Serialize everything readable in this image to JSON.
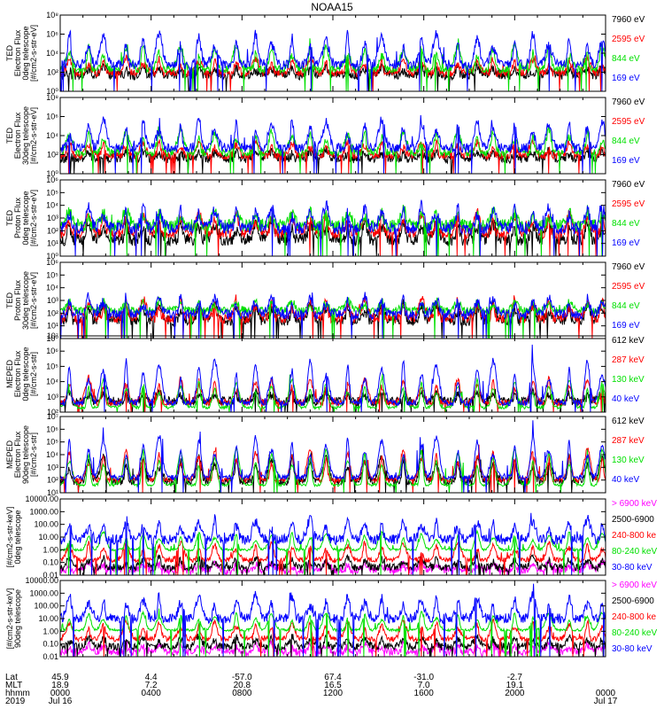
{
  "figure": {
    "title": "NOAA15"
  },
  "colors": {
    "blue": "#0000ff",
    "red": "#ff0000",
    "green": "#00e000",
    "black": "#000000",
    "magenta": "#ff00ff"
  },
  "chart_data": [
    {
      "type": "line",
      "panel": 1,
      "scale": "log",
      "ylim_exp": [
        0,
        8
      ],
      "ytick_labels": [
        "10⁰",
        "10²",
        "10⁴",
        "10⁶",
        "10⁸"
      ],
      "ylabel_lines": [
        "TED",
        "Electron Flux",
        "0deg telescope",
        "[#/cm2-s-str-eV]"
      ],
      "xlim_hours": [
        0,
        24
      ],
      "series": [
        {
          "name": "7960 eV",
          "color": "#000000",
          "base": 1.7,
          "noise": 0.5,
          "spike": 0.8
        },
        {
          "name": "2595 eV",
          "color": "#ff0000",
          "base": 1.9,
          "noise": 0.4,
          "spike": 1.6
        },
        {
          "name": "844 eV",
          "color": "#00e000",
          "base": 2.3,
          "noise": 0.4,
          "spike": 2.6
        },
        {
          "name": "169 eV",
          "color": "#0000ff",
          "base": 2.8,
          "noise": 0.5,
          "spike": 3.2
        }
      ]
    },
    {
      "type": "line",
      "panel": 2,
      "scale": "log",
      "ylim_exp": [
        0,
        8
      ],
      "ytick_labels": [
        "10⁰",
        "10²",
        "10⁴",
        "10⁶",
        "10⁸"
      ],
      "ylabel_lines": [
        "TED",
        "Electron Flux",
        "30deg telescope",
        "[#/cm2-s-str-eV]"
      ],
      "xlim_hours": [
        0,
        24
      ],
      "series": [
        {
          "name": "7960 eV",
          "color": "#000000",
          "base": 1.6,
          "noise": 0.5,
          "spike": 0.8
        },
        {
          "name": "2595 eV",
          "color": "#ff0000",
          "base": 1.9,
          "noise": 0.4,
          "spike": 1.5
        },
        {
          "name": "844 eV",
          "color": "#00e000",
          "base": 2.2,
          "noise": 0.4,
          "spike": 2.4
        },
        {
          "name": "169 eV",
          "color": "#0000ff",
          "base": 2.7,
          "noise": 0.5,
          "spike": 3.0
        }
      ]
    },
    {
      "type": "line",
      "panel": 3,
      "scale": "log",
      "ylim_exp": [
        0,
        6
      ],
      "ytick_labels": [
        "10⁰",
        "10¹",
        "10²",
        "10³",
        "10⁴",
        "10⁵",
        "10⁶"
      ],
      "ylabel_lines": [
        "TED",
        "Proton Flux",
        "0deg telescope",
        "[#/cm2-s-str-eV]"
      ],
      "xlim_hours": [
        0,
        24
      ],
      "series": [
        {
          "name": "7960 eV",
          "color": "#000000",
          "base": 1.3,
          "noise": 0.5,
          "spike": 1.4
        },
        {
          "name": "2595 eV",
          "color": "#ff0000",
          "base": 1.8,
          "noise": 0.4,
          "spike": 1.6
        },
        {
          "name": "844 eV",
          "color": "#00e000",
          "base": 2.4,
          "noise": 0.5,
          "spike": 1.2
        },
        {
          "name": "169 eV",
          "color": "#0000ff",
          "base": 2.2,
          "noise": 0.5,
          "spike": 1.8
        }
      ]
    },
    {
      "type": "line",
      "panel": 4,
      "scale": "log",
      "ylim_exp": [
        0,
        6
      ],
      "ytick_labels": [
        "10⁰",
        "10¹",
        "10²",
        "10³",
        "10⁴",
        "10⁵",
        "10⁶"
      ],
      "ylabel_lines": [
        "TED",
        "Proton Flux",
        "30deg telescope",
        "[#/cm2-s-str-eV]"
      ],
      "xlim_hours": [
        0,
        24
      ],
      "series": [
        {
          "name": "7960 eV",
          "color": "#000000",
          "base": 1.4,
          "noise": 0.4,
          "spike": 1.4
        },
        {
          "name": "2595 eV",
          "color": "#ff0000",
          "base": 1.6,
          "noise": 0.4,
          "spike": 1.5
        },
        {
          "name": "844 eV",
          "color": "#00e000",
          "base": 2.2,
          "noise": 0.3,
          "spike": 0.8
        },
        {
          "name": "169 eV",
          "color": "#0000ff",
          "base": 1.9,
          "noise": 0.4,
          "spike": 1.4
        }
      ]
    },
    {
      "type": "line",
      "panel": 5,
      "scale": "log",
      "ylim_exp": [
        2,
        7
      ],
      "ytick_labels": [
        "10²",
        "10³",
        "10⁴",
        "10⁵",
        "10⁶",
        "10⁷"
      ],
      "ylabel_lines": [
        "MEPED",
        "Electron Flux",
        "0deg telescope",
        "[#/cm2-s-str]"
      ],
      "xlim_hours": [
        0,
        24
      ],
      "series": [
        {
          "name": "612 keV",
          "color": "#000000",
          "base": 2.7,
          "noise": 0.3,
          "spike": 0.6
        },
        {
          "name": "287 keV",
          "color": "#ff0000",
          "base": 2.6,
          "noise": 0.2,
          "spike": 1.6
        },
        {
          "name": "130 keV",
          "color": "#00e000",
          "base": 2.3,
          "noise": 0.1,
          "spike": 1.8
        },
        {
          "name": "40 keV",
          "color": "#0000ff",
          "base": 2.6,
          "noise": 0.2,
          "spike": 2.8
        }
      ]
    },
    {
      "type": "line",
      "panel": 6,
      "scale": "log",
      "ylim_exp": [
        1,
        7
      ],
      "ytick_labels": [
        "10¹",
        "10²",
        "10³",
        "10⁴",
        "10⁵",
        "10⁶",
        "10⁷"
      ],
      "ylabel_lines": [
        "MEPED",
        "Electron Flux",
        "90deg telescope",
        "[#/cm2-s-str]"
      ],
      "xlim_hours": [
        0,
        24
      ],
      "series": [
        {
          "name": "612 keV",
          "color": "#000000",
          "base": 1.9,
          "noise": 0.3,
          "spike": 2.0
        },
        {
          "name": "287 keV",
          "color": "#ff0000",
          "base": 2.0,
          "noise": 0.2,
          "spike": 2.4
        },
        {
          "name": "130 keV",
          "color": "#00e000",
          "base": 1.6,
          "noise": 0.1,
          "spike": 2.8
        },
        {
          "name": "40 keV",
          "color": "#0000ff",
          "base": 2.2,
          "noise": 0.2,
          "spike": 3.2
        }
      ]
    },
    {
      "type": "line",
      "panel": 7,
      "scale": "log",
      "ylim_exp": [
        -2,
        4
      ],
      "ytick_labels": [
        "0.01",
        "0.10",
        "1.00",
        "10.00",
        "100.00",
        "1000.00",
        "10000.00"
      ],
      "ylabel_lines": [
        "[#/cm2-s-str-keV]",
        "0deg telescope"
      ],
      "xlim_hours": [
        0,
        24
      ],
      "series": [
        {
          "name": "> 6900 keV",
          "color": "#ff00ff",
          "base": -1.6,
          "noise": 0.3,
          "spike": 0.6
        },
        {
          "name": "2500-6900",
          "color": "#000000",
          "base": -1.4,
          "noise": 0.3,
          "spike": 0.8
        },
        {
          "name": "240-800 ke",
          "color": "#ff0000",
          "base": -0.8,
          "noise": 0.2,
          "spike": 1.4
        },
        {
          "name": "80-240 keV",
          "color": "#00e000",
          "base": 0.0,
          "noise": 0.1,
          "spike": 1.4
        },
        {
          "name": "30-80 keV",
          "color": "#0000ff",
          "base": 0.8,
          "noise": 0.4,
          "spike": 1.6
        }
      ]
    },
    {
      "type": "line",
      "panel": 8,
      "scale": "log",
      "ylim_exp": [
        -2,
        4
      ],
      "ytick_labels": [
        "0.01",
        "0.10",
        "1.00",
        "10.00",
        "100.00",
        "1000.00",
        "10000.00"
      ],
      "ylabel_lines": [
        "[#/cm2-s-str-keV]",
        "90deg telescope"
      ],
      "xlim_hours": [
        0,
        24
      ],
      "series": [
        {
          "name": "> 6900 keV",
          "color": "#ff00ff",
          "base": -1.6,
          "noise": 0.3,
          "spike": 0.6
        },
        {
          "name": "2500-6900",
          "color": "#000000",
          "base": -1.2,
          "noise": 0.3,
          "spike": 0.8
        },
        {
          "name": "240-800 ke",
          "color": "#ff0000",
          "base": -0.6,
          "noise": 0.2,
          "spike": 1.4
        },
        {
          "name": "80-240 keV",
          "color": "#00e000",
          "base": 0.1,
          "noise": 0.1,
          "spike": 1.4
        },
        {
          "name": "30-80 keV",
          "color": "#0000ff",
          "base": 1.0,
          "noise": 0.4,
          "spike": 1.8
        }
      ]
    }
  ],
  "pass_hours": [
    0.4,
    1.25,
    1.9,
    2.9,
    3.65,
    4.35,
    5.3,
    6.1,
    6.8,
    7.75,
    8.6,
    9.3,
    10.2,
    11.0,
    11.7,
    12.65,
    13.4,
    14.15,
    15.1,
    15.9,
    16.55,
    17.5,
    18.35,
    19.05,
    20.0,
    20.8,
    21.5,
    22.4,
    23.2,
    23.85
  ],
  "footer": {
    "row_labels": [
      "Lat",
      "MLT",
      "hhmm",
      "2019"
    ],
    "columns": [
      {
        "hour": 0,
        "lat": "45.9",
        "mlt": "18.9",
        "hhmm": "0000",
        "date": "Jul 16"
      },
      {
        "hour": 4,
        "lat": "4.4",
        "mlt": "7.2",
        "hhmm": "0400",
        "date": ""
      },
      {
        "hour": 8,
        "lat": "-57.0",
        "mlt": "20.8",
        "hhmm": "0800",
        "date": ""
      },
      {
        "hour": 12,
        "lat": "67.4",
        "mlt": "16.5",
        "hhmm": "1200",
        "date": ""
      },
      {
        "hour": 16,
        "lat": "-31.0",
        "mlt": "7.0",
        "hhmm": "1600",
        "date": ""
      },
      {
        "hour": 20,
        "lat": "-2.7",
        "mlt": "19.1",
        "hhmm": "2000",
        "date": ""
      },
      {
        "hour": 24,
        "lat": "",
        "mlt": "",
        "hhmm": "0000",
        "date": "Jul 17"
      }
    ]
  }
}
